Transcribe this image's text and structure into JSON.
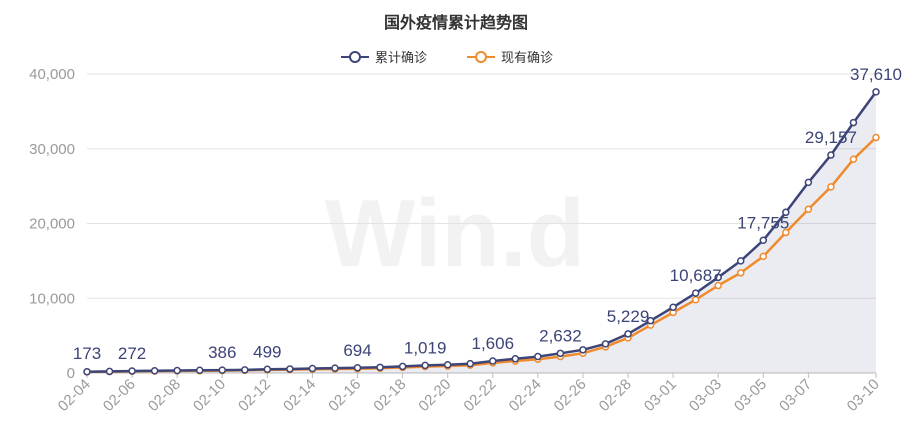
{
  "chart_data": {
    "type": "line",
    "title": "国外疫情累计趋势图",
    "watermark": "Win.d",
    "x": [
      "02-04",
      "02-05",
      "02-06",
      "02-07",
      "02-08",
      "02-09",
      "02-10",
      "02-11",
      "02-12",
      "02-13",
      "02-14",
      "02-15",
      "02-16",
      "02-17",
      "02-18",
      "02-19",
      "02-20",
      "02-21",
      "02-22",
      "02-23",
      "02-24",
      "02-25",
      "02-26",
      "02-27",
      "02-28",
      "02-29",
      "03-01",
      "03-02",
      "03-03",
      "03-04",
      "03-05",
      "03-06",
      "03-07",
      "03-08",
      "03-09",
      "03-10"
    ],
    "x_tick_labels": [
      "02-04",
      "02-06",
      "02-08",
      "02-10",
      "02-12",
      "02-14",
      "02-16",
      "02-18",
      "02-20",
      "02-22",
      "02-24",
      "02-26",
      "02-28",
      "03-01",
      "03-03",
      "03-05",
      "03-07",
      "03-10"
    ],
    "ylim": [
      0,
      40000
    ],
    "y_ticks": [
      "0",
      "10,000",
      "20,000",
      "30,000",
      "40,000"
    ],
    "legend_position": "top-center",
    "grid": true,
    "series": [
      {
        "name": "累计确诊",
        "color": "#3c4478",
        "area": true,
        "values": [
          173,
          210,
          272,
          300,
          330,
          360,
          386,
          420,
          499,
          540,
          600,
          650,
          694,
          760,
          880,
          1019,
          1100,
          1250,
          1606,
          1900,
          2200,
          2632,
          3100,
          3900,
          5229,
          7000,
          8800,
          10687,
          12800,
          15000,
          17755,
          21500,
          25500,
          29157,
          33500,
          37610
        ],
        "labels": [
          "173",
          "272",
          "386",
          "499",
          "694",
          "1,019",
          "1,606",
          "2,632",
          "5,229",
          "10,687",
          "17,755",
          "29,157",
          "37,610"
        ]
      },
      {
        "name": "现有确诊",
        "color": "#f08a2c",
        "area": false,
        "values": [
          150,
          180,
          230,
          260,
          280,
          300,
          320,
          360,
          420,
          450,
          500,
          540,
          580,
          640,
          740,
          850,
          930,
          1050,
          1350,
          1600,
          1850,
          2200,
          2650,
          3500,
          4700,
          6400,
          8100,
          9800,
          11700,
          13400,
          15600,
          18800,
          21900,
          24900,
          28600,
          31500
        ]
      }
    ]
  }
}
